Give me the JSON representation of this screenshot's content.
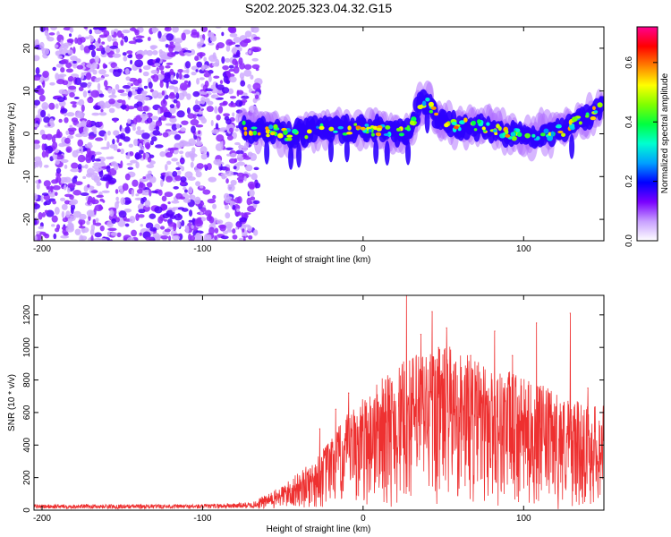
{
  "figure": {
    "title": "S202.2025.323.04.32.G15"
  },
  "chart_data": [
    {
      "type": "heatmap",
      "title": "",
      "xlabel": "Height of straight line (km)",
      "ylabel": "Frequency (Hz)",
      "xlim": [
        -205,
        150
      ],
      "ylim": [
        -25,
        25
      ],
      "xticks": [
        -200,
        -100,
        0,
        100
      ],
      "yticks": [
        -20,
        -10,
        0,
        10,
        20
      ],
      "grid": false,
      "colorbar": {
        "label": "Normalized spectral amplitude",
        "range": [
          0,
          0.72
        ],
        "ticks": [
          0.0,
          0.2,
          0.4,
          0.6
        ],
        "colors": [
          "#ffffff",
          "#c8a0ff",
          "#7a00ff",
          "#0000ff",
          "#00a0ff",
          "#00ffd0",
          "#00ff40",
          "#80ff00",
          "#ffff00",
          "#ff8000",
          "#ff0000",
          "#ff0090"
        ]
      },
      "noise_region": {
        "x_range": [
          -205,
          -68
        ],
        "freq_range": [
          -25,
          25
        ]
      },
      "signal_ridge": {
        "x": [
          -75,
          -65,
          -55,
          -45,
          -35,
          -25,
          -15,
          -5,
          5,
          15,
          25,
          30,
          35,
          40,
          45,
          55,
          65,
          75,
          85,
          95,
          105,
          115,
          125,
          135,
          145,
          150
        ],
        "freq": [
          1.5,
          0.5,
          1.0,
          -0.5,
          0.5,
          1.5,
          1.0,
          1.5,
          1.0,
          0.5,
          0.0,
          1.0,
          7.0,
          8.0,
          4.0,
          2.0,
          2.0,
          1.5,
          0.5,
          0.0,
          -0.5,
          0.0,
          1.0,
          3.0,
          5.0,
          7.0
        ]
      }
    },
    {
      "type": "line",
      "title": "",
      "xlabel": "Height of straight line (km)",
      "ylabel": "SNR (10 * v/v)",
      "xlim": [
        -205,
        150
      ],
      "ylim": [
        0,
        1320
      ],
      "xticks": [
        -200,
        -100,
        0,
        100
      ],
      "yticks": [
        0,
        200,
        400,
        600,
        800,
        1000,
        1200
      ],
      "grid": false,
      "series": [
        {
          "color": "#ee3030",
          "envelope_x": [
            -205,
            -150,
            -100,
            -70,
            -60,
            -50,
            -40,
            -30,
            -20,
            -10,
            0,
            10,
            20,
            30,
            40,
            50,
            60,
            70,
            80,
            90,
            100,
            110,
            120,
            130,
            140,
            150
          ],
          "envelope_y": [
            30,
            30,
            30,
            40,
            60,
            100,
            150,
            200,
            290,
            380,
            450,
            520,
            560,
            620,
            650,
            660,
            640,
            600,
            560,
            560,
            520,
            500,
            470,
            440,
            420,
            420
          ],
          "peaks": [
            {
              "x": -27,
              "y": 500
            },
            {
              "x": -17,
              "y": 620
            },
            {
              "x": -9,
              "y": 720
            },
            {
              "x": 14,
              "y": 800
            },
            {
              "x": 27,
              "y": 1320
            },
            {
              "x": 36,
              "y": 1080
            },
            {
              "x": 43,
              "y": 1220
            },
            {
              "x": 47,
              "y": 1000
            },
            {
              "x": 52,
              "y": 1120
            },
            {
              "x": 67,
              "y": 950
            },
            {
              "x": 82,
              "y": 1100
            },
            {
              "x": 93,
              "y": 950
            },
            {
              "x": 108,
              "y": 1150
            },
            {
              "x": 129,
              "y": 1210
            },
            {
              "x": 140,
              "y": 750
            }
          ]
        }
      ]
    }
  ]
}
